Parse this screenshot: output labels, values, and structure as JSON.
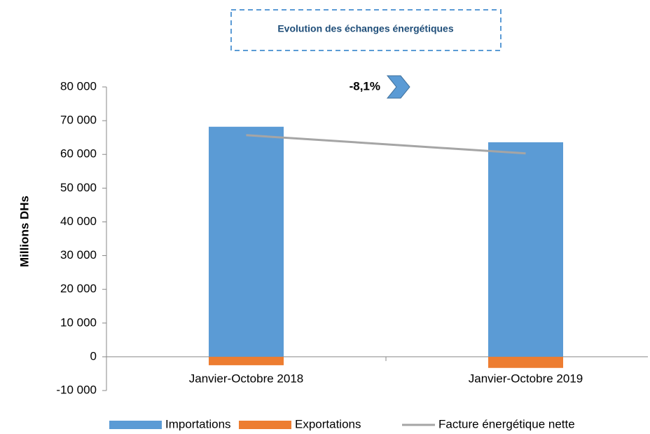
{
  "chart_data": {
    "type": "bar",
    "title": "Evolution des échanges énergétiques",
    "y_label": "Millions DHs",
    "annotation": "-8,1%",
    "categories": [
      "Janvier-Octobre 2018",
      "Janvier-Octobre 2019"
    ],
    "series": [
      {
        "name": "Importations",
        "type": "bar",
        "color": "#5b9bd5",
        "values": [
          68200,
          63600
        ]
      },
      {
        "name": "Exportations",
        "type": "bar",
        "color": "#ed7d31",
        "values": [
          -2500,
          -3300
        ]
      },
      {
        "name": "Facture énergétique nette",
        "type": "line",
        "color": "#a5a5a5",
        "values": [
          65700,
          60300
        ]
      }
    ],
    "stacked": true,
    "ylim": [
      -10000,
      80000
    ],
    "yticks": [
      {
        "value": -10000,
        "label": "-10 000"
      },
      0,
      {
        "value": 10000,
        "label": "10 000"
      },
      {
        "value": 20000,
        "label": "20 000"
      },
      {
        "value": 30000,
        "label": "30 000"
      },
      {
        "value": 40000,
        "label": "40 000"
      },
      {
        "value": 50000,
        "label": "50 000"
      },
      {
        "value": 60000,
        "label": "60 000"
      },
      {
        "value": 70000,
        "label": "70 000"
      },
      {
        "value": 80000,
        "label": "80 000"
      }
    ],
    "legend": "bottom"
  }
}
